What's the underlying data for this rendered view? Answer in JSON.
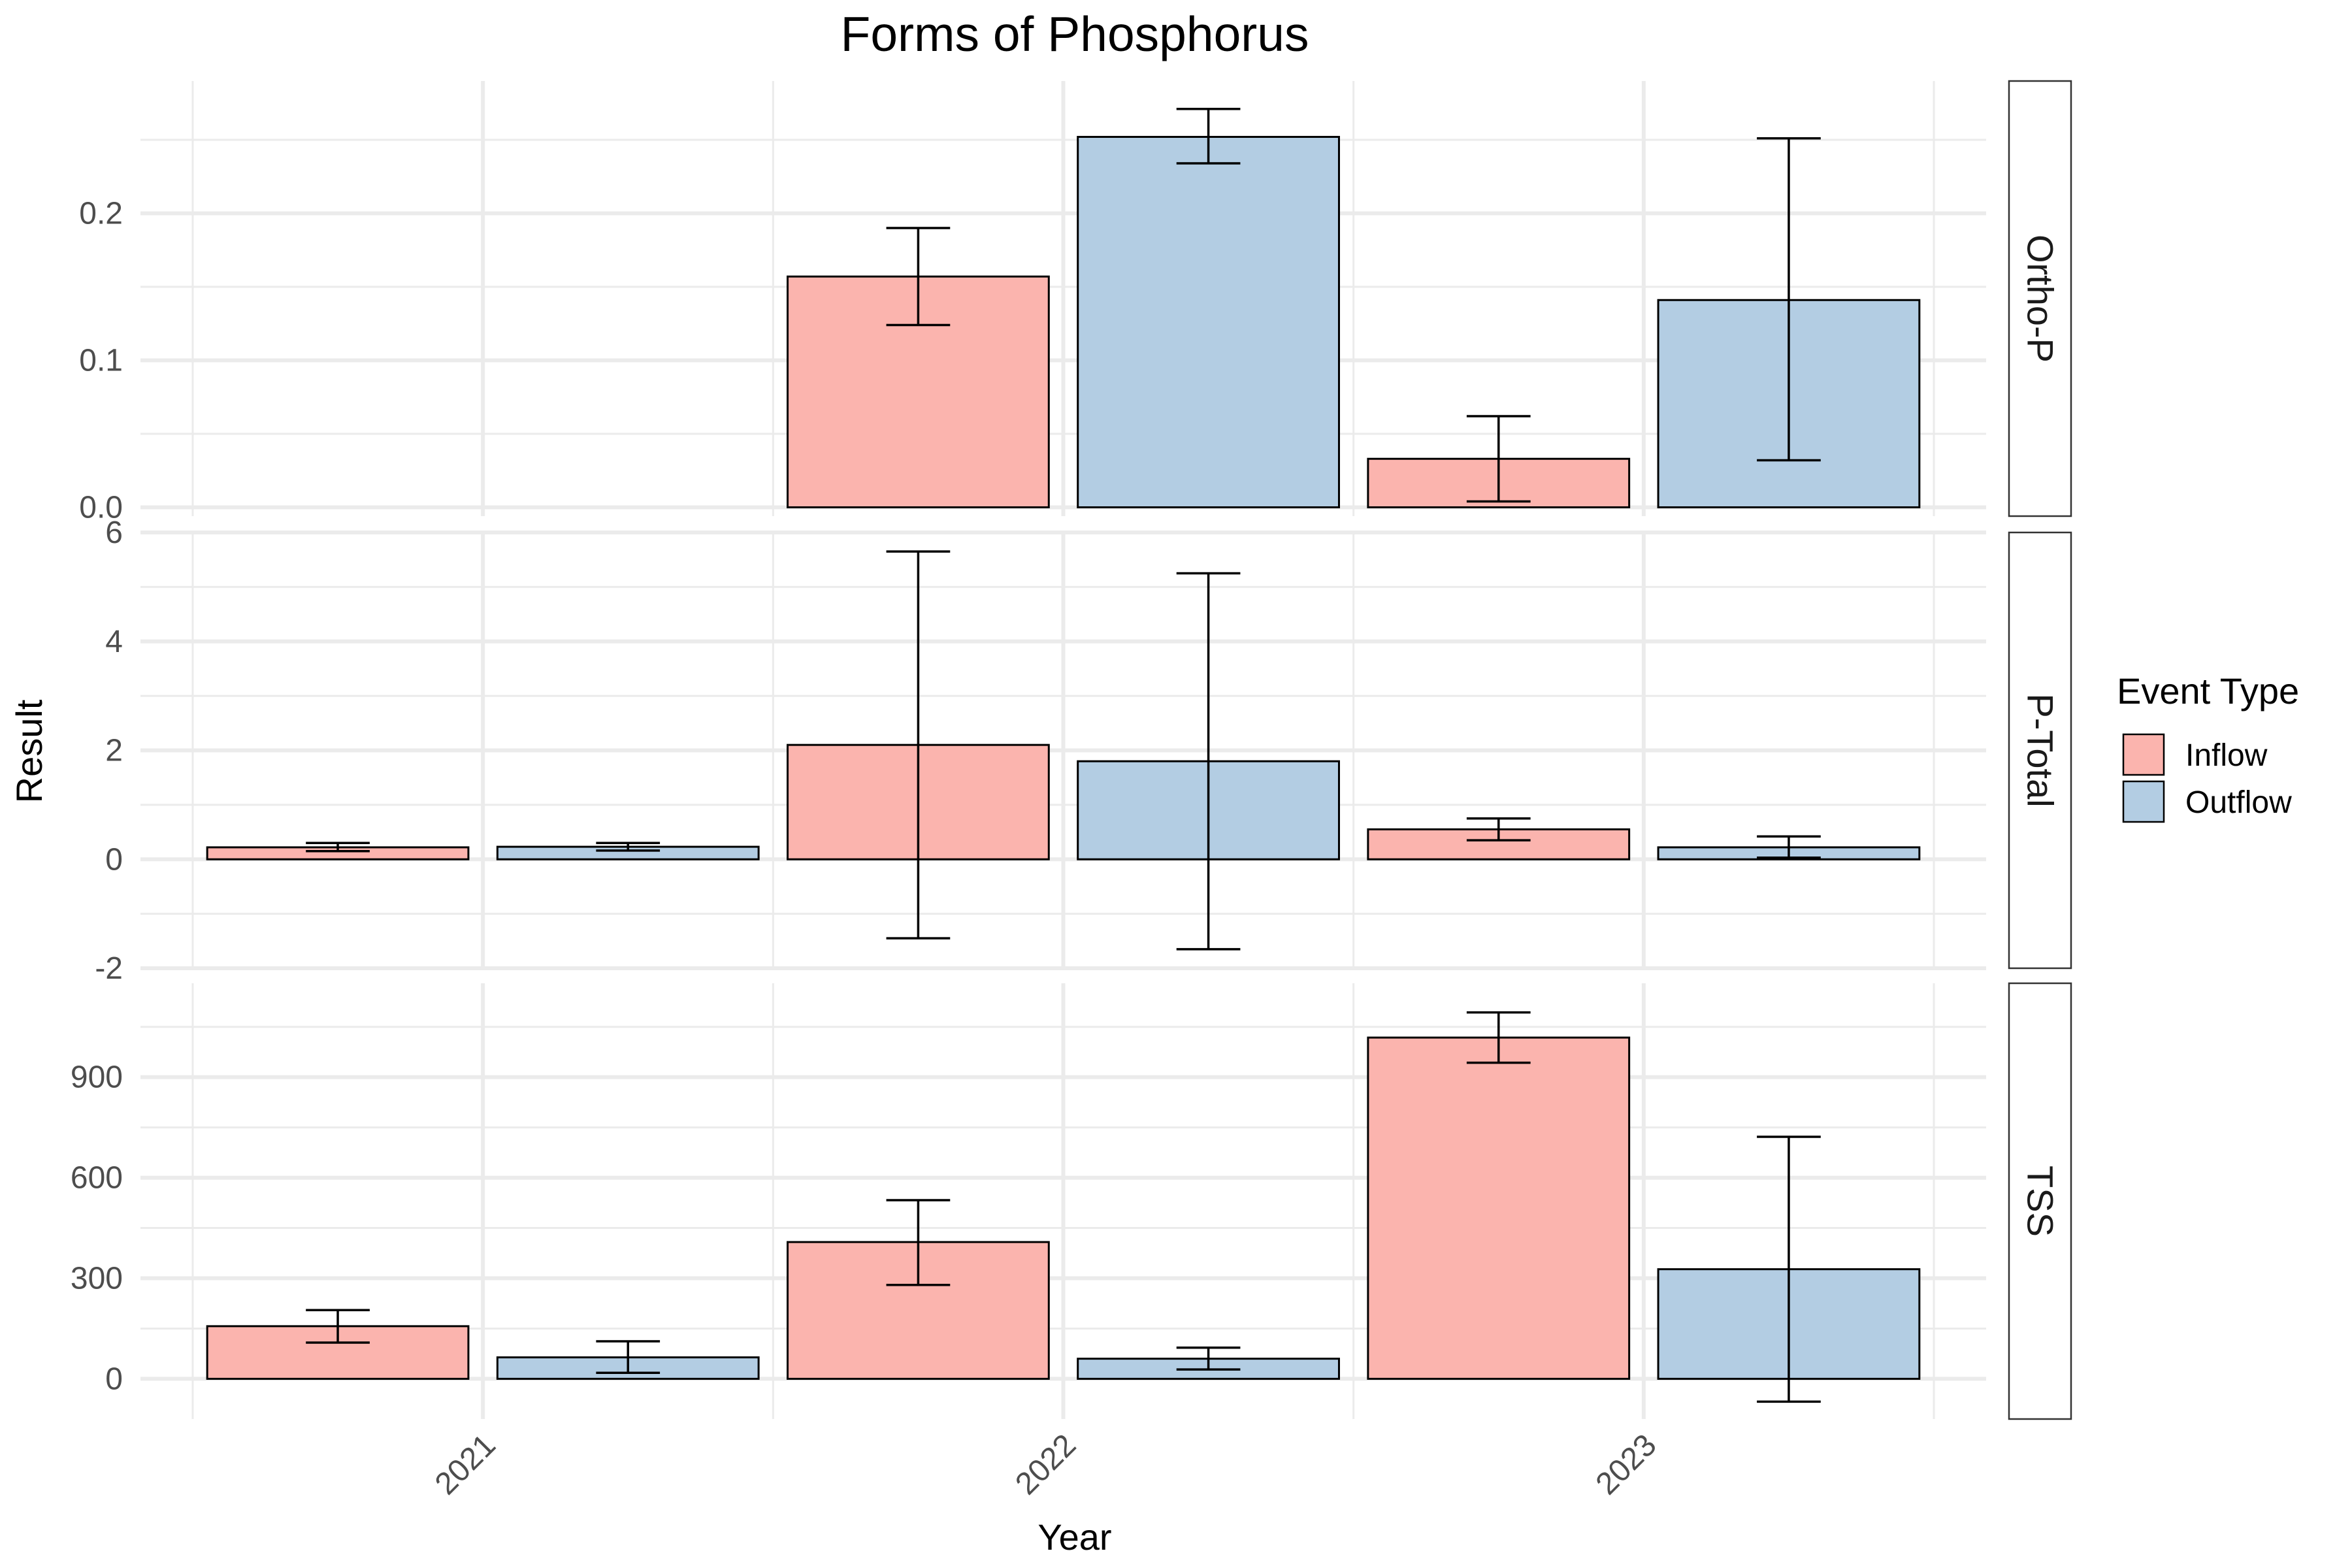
{
  "chart_data": {
    "type": "bar",
    "title": "Forms of Phosphorus",
    "xlabel": "Year",
    "ylabel": "Result",
    "x_ticks": [
      "2021",
      "2022",
      "2023"
    ],
    "legend": {
      "title": "Event Type",
      "position": "right",
      "items": [
        {
          "label": "Inflow",
          "color": "#FBB4AE"
        },
        {
          "label": "Outflow",
          "color": "#B3CDE3"
        }
      ]
    },
    "grid": true,
    "facets": [
      {
        "name": "Ortho-P",
        "ylim": [
          -0.006,
          0.29
        ],
        "y_ticks": [
          "0.0",
          "0.1",
          "0.2"
        ],
        "y_tick_values": [
          0,
          0.1,
          0.2
        ],
        "series": [
          {
            "name": "Inflow",
            "years": [
              2021,
              2022,
              2023
            ],
            "values": [
              null,
              0.157,
              0.033
            ],
            "err_low": [
              null,
              0.124,
              0.004
            ],
            "err_high": [
              null,
              0.19,
              0.062
            ]
          },
          {
            "name": "Outflow",
            "years": [
              2021,
              2022,
              2023
            ],
            "values": [
              null,
              0.252,
              0.141
            ],
            "err_low": [
              null,
              0.234,
              0.032
            ],
            "err_high": [
              null,
              0.271,
              0.251
            ]
          }
        ]
      },
      {
        "name": "P-Total",
        "ylim": [
          -2.0,
          6.0
        ],
        "y_ticks": [
          "-2",
          "0",
          "2",
          "4",
          "6"
        ],
        "y_tick_values": [
          -2,
          0,
          2,
          4,
          6
        ],
        "series": [
          {
            "name": "Inflow",
            "years": [
              2021,
              2022,
              2023
            ],
            "values": [
              0.22,
              2.1,
              0.55
            ],
            "err_low": [
              0.15,
              -1.45,
              0.35
            ],
            "err_high": [
              0.3,
              5.65,
              0.75
            ]
          },
          {
            "name": "Outflow",
            "years": [
              2021,
              2022,
              2023
            ],
            "values": [
              0.23,
              1.8,
              0.22
            ],
            "err_low": [
              0.16,
              -1.65,
              0.03
            ],
            "err_high": [
              0.3,
              5.25,
              0.42
            ]
          }
        ]
      },
      {
        "name": "TSS",
        "ylim": [
          -120,
          1180
        ],
        "y_ticks": [
          "0",
          "300",
          "600",
          "900"
        ],
        "y_tick_values": [
          0,
          300,
          600,
          900
        ],
        "series": [
          {
            "name": "Inflow",
            "years": [
              2021,
              2022,
              2023
            ],
            "values": [
              157,
              408,
              1018
            ],
            "err_low": [
              108,
              280,
              943
            ],
            "err_high": [
              205,
              533,
              1093
            ]
          },
          {
            "name": "Outflow",
            "years": [
              2021,
              2022,
              2023
            ],
            "values": [
              64,
              60,
              327
            ],
            "err_low": [
              18,
              28,
              -68
            ],
            "err_high": [
              112,
              93,
              722
            ]
          }
        ]
      }
    ]
  }
}
